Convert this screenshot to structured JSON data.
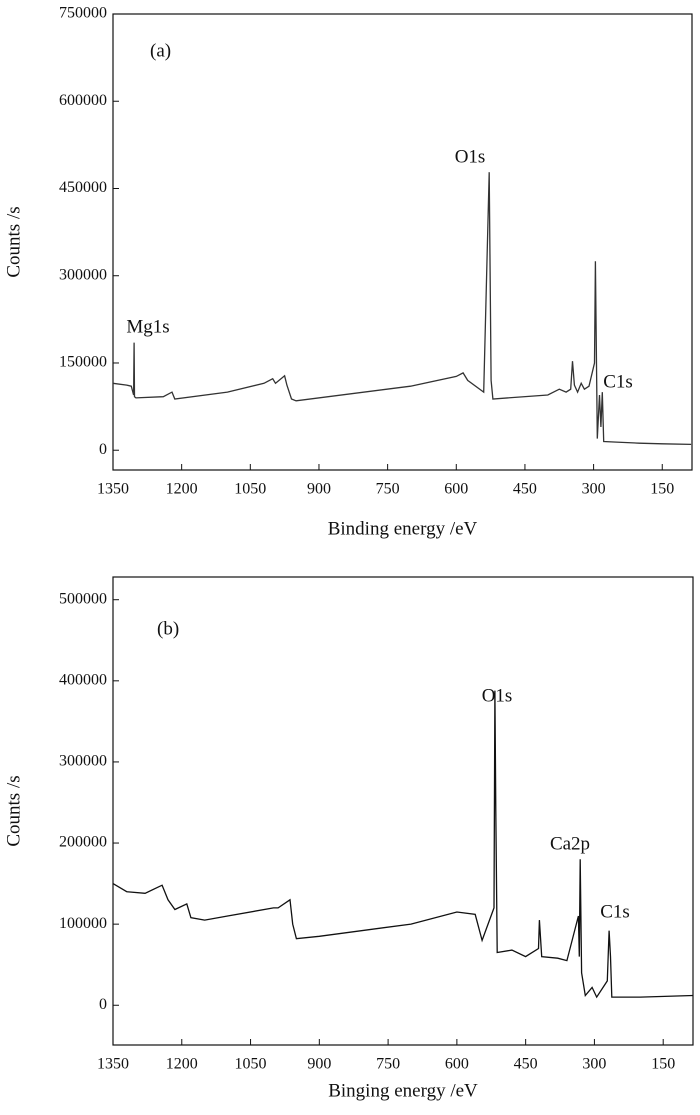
{
  "chart_data": [
    {
      "type": "line",
      "title": "(a)",
      "x_label": "Binding energy /eV",
      "y_label": "Counts /s",
      "annotations": [
        "Mg1s",
        "O1s",
        "C1s"
      ],
      "xlim": [
        1350,
        85
      ],
      "ylim": [
        -34000,
        750000
      ],
      "xticks": [
        1350,
        1200,
        1050,
        900,
        750,
        600,
        450,
        300,
        150
      ],
      "yticks": [
        0,
        150000,
        300000,
        450000,
        600000,
        750000
      ],
      "series": [
        {
          "color": "#333333",
          "x": [
            1350,
            1320,
            1310,
            1305,
            1304,
            1303,
            1300,
            1240,
            1221,
            1215,
            1100,
            1020,
            1001,
            995,
            975,
            970,
            960,
            950,
            700,
            600,
            585,
            575,
            540,
            528,
            524,
            520,
            400,
            375,
            360,
            350,
            346,
            342,
            335,
            327,
            320,
            310,
            298,
            296,
            292,
            287,
            284,
            281,
            278,
            250,
            200,
            150,
            87
          ],
          "values": [
            115000,
            112000,
            110000,
            95000,
            185000,
            92000,
            90000,
            92000,
            100000,
            88000,
            100000,
            115000,
            123000,
            115000,
            128000,
            112000,
            88000,
            85000,
            110000,
            127000,
            133000,
            120000,
            100000,
            478000,
            120000,
            88000,
            95000,
            105000,
            100000,
            105000,
            153000,
            112000,
            100000,
            115000,
            105000,
            110000,
            150000,
            325000,
            20000,
            95000,
            40000,
            100000,
            15000,
            14000,
            12000,
            11000,
            10000
          ]
        }
      ]
    },
    {
      "type": "line",
      "title": "(b)",
      "x_label": "Binging energy /eV",
      "y_label": "Counts /s",
      "annotations": [
        "O1s",
        "Ca2p",
        "C1s"
      ],
      "xlim": [
        1350,
        85
      ],
      "ylim": [
        -49000,
        528000
      ],
      "xticks": [
        1350,
        1200,
        1050,
        900,
        750,
        600,
        450,
        300,
        150
      ],
      "yticks": [
        0,
        100000,
        200000,
        300000,
        400000,
        500000
      ],
      "series": [
        {
          "color": "#111111",
          "x": [
            1350,
            1320,
            1280,
            1243,
            1230,
            1215,
            1189,
            1180,
            1150,
            1100,
            1000,
            990,
            964,
            958,
            950,
            900,
            700,
            600,
            560,
            545,
            519,
            517,
            515,
            512,
            480,
            450,
            422,
            420,
            415,
            380,
            360,
            335,
            333,
            331,
            328,
            320,
            305,
            295,
            272,
            268,
            265,
            262,
            200,
            85
          ],
          "values": [
            150000,
            140000,
            138000,
            148000,
            130000,
            118000,
            125000,
            108000,
            105000,
            110000,
            120000,
            120000,
            130000,
            100000,
            82000,
            85000,
            100000,
            115000,
            112000,
            80000,
            120000,
            388000,
            240000,
            65000,
            68000,
            60000,
            70000,
            105000,
            60000,
            58000,
            55000,
            110000,
            60000,
            180000,
            40000,
            12000,
            22000,
            10000,
            30000,
            92000,
            60000,
            10000,
            10000,
            12000
          ]
        }
      ]
    }
  ]
}
